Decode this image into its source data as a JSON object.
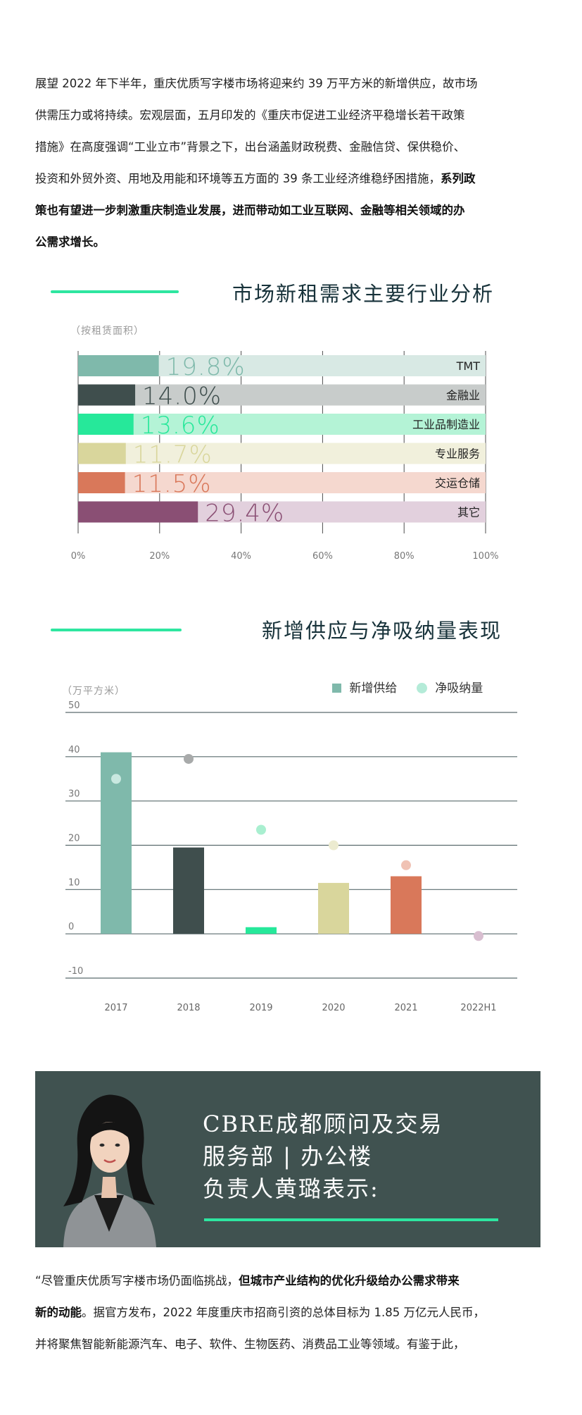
{
  "intro": {
    "lines": [
      [
        {
          "t": "展望 2022 年下半年，重庆优质写字楼市场将迎来约 39 万平方米的新增供应，故市场",
          "b": false
        }
      ],
      [
        {
          "t": "供需压力或将持续。宏观层面，五月印发的《重庆市促进工业经济平稳增长若干政策",
          "b": false
        }
      ],
      [
        {
          "t": "措施》在高度强调“工业立市”背景之下，出台涵盖财政税费、金融信贷、保供稳价、",
          "b": false
        }
      ],
      [
        {
          "t": "投资和外贸外资、用地及用能和环境等五方面的 39 条工业经济维稳纾困措施，",
          "b": false
        },
        {
          "t": "系列政",
          "b": true
        }
      ],
      [
        {
          "t": "策也有望进一步刺激重庆制造业发展，进而带动如工业互联网、金融等相关领域的办",
          "b": true
        }
      ],
      [
        {
          "t": "公需求增长。",
          "b": true
        }
      ]
    ]
  },
  "section1": {
    "title": "市场新租需求主要行业分析",
    "unit": "（按租赁面积）"
  },
  "section2": {
    "title": "新增供应与净吸纳量表现",
    "unit": "（万平方米）"
  },
  "chart_data": [
    {
      "type": "bar",
      "orientation": "horizontal",
      "title": "市场新租需求主要行业分析",
      "subtitle": "（按租赁面积）",
      "categories": [
        "TMT",
        "金融业",
        "工业品制造业",
        "专业服务",
        "交运仓储",
        "其它"
      ],
      "values": [
        19.8,
        14.0,
        13.6,
        11.7,
        11.5,
        29.4
      ],
      "value_labels": [
        "19.8%",
        "14.0%",
        "13.6%",
        "11.7%",
        "11.5%",
        "29.4%"
      ],
      "colors": [
        "#7fb9ab",
        "#3f4e4d",
        "#26e89a",
        "#d9d69c",
        "#d9785a",
        "#8a4f74"
      ],
      "track_colors": [
        "#d8e9e4",
        "#c8cccb",
        "#b4f3d6",
        "#f1f0dc",
        "#f5d8cf",
        "#e2d0dd"
      ],
      "xlim": [
        0,
        100
      ],
      "xticks": [
        "0%",
        "20%",
        "40%",
        "60%",
        "80%",
        "100%"
      ],
      "grid": true
    },
    {
      "type": "bar",
      "title": "新增供应与净吸纳量表现",
      "subtitle": "（万平方米）",
      "categories": [
        "2017",
        "2018",
        "2019",
        "2020",
        "2021",
        "2022H1"
      ],
      "series": [
        {
          "name": "新增供给",
          "kind": "bar",
          "values": [
            41,
            19.5,
            1.5,
            11.5,
            13,
            null
          ],
          "colors": [
            "#7fb9ab",
            "#3f4e4d",
            "#26e89a",
            "#d9d69c",
            "#d9785a",
            "#8a4f74"
          ]
        },
        {
          "name": "净吸纳量",
          "kind": "point",
          "values": [
            35,
            39.5,
            23.5,
            20,
            15.5,
            -0.5
          ],
          "colors": [
            "#c9e8e0",
            "#a8aaaa",
            "#a9efd0",
            "#ecebd0",
            "#f0c2b4",
            "#d8bed0"
          ]
        }
      ],
      "ylim": [
        -10,
        50
      ],
      "yticks": [
        "-10",
        "0",
        "10",
        "20",
        "30",
        "40",
        "50"
      ],
      "legend": "top-right",
      "legend_colors": [
        "#7fb9ab",
        "#b4ebd8"
      ],
      "grid": true
    }
  ],
  "banner": {
    "title_lines": [
      "CBRE成都顾问及交易",
      "服务部 | 办公楼",
      "负责人黄璐表示:"
    ]
  },
  "quote": {
    "lines": [
      [
        {
          "t": "“尽管重庆优质写字楼市场仍面临挑战，",
          "b": false
        },
        {
          "t": "但城市产业结构的优化升级给办公需求带来",
          "b": true
        }
      ],
      [
        {
          "t": "新的动能",
          "b": true
        },
        {
          "t": "。据官方发布，2022 年度重庆市招商引资的总体目标为 1.85 万亿元人民币，",
          "b": false
        }
      ],
      [
        {
          "t": "并将聚焦智能新能源汽车、电子、软件、生物医药、消费品工业等领域。有鉴于此，",
          "b": false
        }
      ]
    ]
  }
}
